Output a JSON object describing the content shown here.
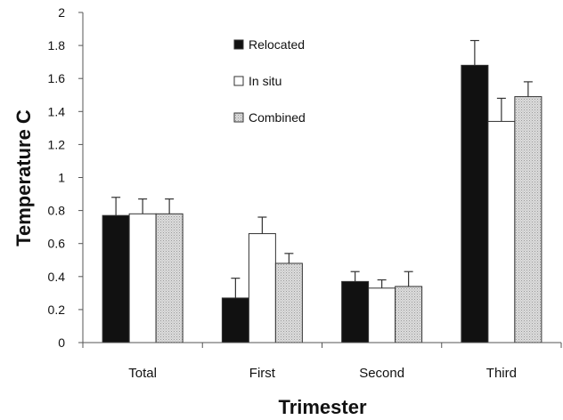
{
  "chart_data": {
    "type": "bar",
    "title": "",
    "xlabel": "Trimester",
    "ylabel": "Temperature C",
    "categories": [
      "Total",
      "First",
      "Second",
      "Third"
    ],
    "ylim": [
      0,
      2
    ],
    "yticks": [
      0,
      0.2,
      0.4,
      0.6,
      0.8,
      1,
      1.2,
      1.4,
      1.6,
      1.8,
      2
    ],
    "ytick_labels": [
      "0",
      "0.2",
      "0.4",
      "0.6",
      "0.8",
      "1",
      "1.2",
      "1.4",
      "1.6",
      "1.8",
      "2"
    ],
    "grid": false,
    "legend_position": "top-center",
    "error_bars": "upper",
    "series": [
      {
        "name": "Relocated",
        "color": "#111111",
        "values": [
          0.77,
          0.27,
          0.37,
          1.68
        ],
        "errors": [
          0.11,
          0.12,
          0.06,
          0.15
        ]
      },
      {
        "name": "In situ",
        "color": "#ffffff",
        "values": [
          0.78,
          0.66,
          0.33,
          1.34
        ],
        "errors": [
          0.09,
          0.1,
          0.05,
          0.14
        ]
      },
      {
        "name": "Combined",
        "color": "#d4d4d4",
        "values": [
          0.78,
          0.48,
          0.34,
          1.49
        ],
        "errors": [
          0.09,
          0.06,
          0.09,
          0.09
        ]
      }
    ]
  }
}
